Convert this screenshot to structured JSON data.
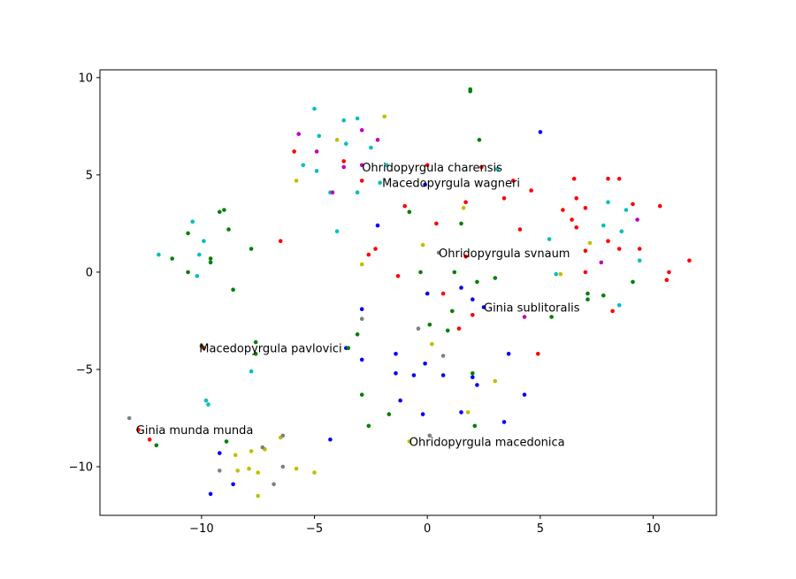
{
  "chart_data": {
    "type": "scatter",
    "title": "",
    "xlabel": "",
    "ylabel": "",
    "xlim": [
      -14.5,
      12.8
    ],
    "ylim": [
      -12.5,
      10.4
    ],
    "xticks": [
      -10,
      -5,
      0,
      5,
      10
    ],
    "yticks": [
      -10,
      -5,
      0,
      5,
      10
    ],
    "grid": false,
    "legend": "none",
    "series": [
      {
        "color": "#0000ff",
        "points": [
          [
            5.0,
            7.2
          ],
          [
            -0.1,
            4.5
          ],
          [
            -2.2,
            2.4
          ],
          [
            1.5,
            -0.8
          ],
          [
            2.0,
            -1.4
          ],
          [
            0.0,
            -1.1
          ],
          [
            2.5,
            -1.8
          ],
          [
            -2.9,
            -1.9
          ],
          [
            -3.6,
            -3.9
          ],
          [
            -2.9,
            -4.5
          ],
          [
            -1.4,
            -4.2
          ],
          [
            -0.1,
            -4.7
          ],
          [
            -1.4,
            -5.2
          ],
          [
            -0.6,
            -5.3
          ],
          [
            0.7,
            -5.3
          ],
          [
            2.0,
            -5.4
          ],
          [
            2.2,
            -5.8
          ],
          [
            3.6,
            -4.2
          ],
          [
            -1.2,
            -6.6
          ],
          [
            -0.2,
            -7.3
          ],
          [
            1.5,
            -7.2
          ],
          [
            3.4,
            -7.7
          ],
          [
            4.3,
            -6.3
          ],
          [
            -4.3,
            -8.6
          ],
          [
            -9.2,
            -9.3
          ],
          [
            -9.6,
            -11.4
          ],
          [
            -8.6,
            -10.9
          ]
        ]
      },
      {
        "color": "#ff0000",
        "points": [
          [
            -5.9,
            6.2
          ],
          [
            -3.7,
            5.7
          ],
          [
            -2.9,
            4.7
          ],
          [
            0.0,
            5.5
          ],
          [
            2.4,
            5.4
          ],
          [
            3.8,
            4.7
          ],
          [
            4.6,
            4.2
          ],
          [
            1.7,
            3.6
          ],
          [
            -1.0,
            3.4
          ],
          [
            3.4,
            3.8
          ],
          [
            6.5,
            4.8
          ],
          [
            8.0,
            4.8
          ],
          [
            8.5,
            4.8
          ],
          [
            6.6,
            3.8
          ],
          [
            6.0,
            3.2
          ],
          [
            7.0,
            3.3
          ],
          [
            9.1,
            3.5
          ],
          [
            10.3,
            3.4
          ],
          [
            6.4,
            2.7
          ],
          [
            6.6,
            2.3
          ],
          [
            0.4,
            2.5
          ],
          [
            4.1,
            2.2
          ],
          [
            -2.3,
            1.2
          ],
          [
            -6.5,
            1.6
          ],
          [
            -2.6,
            0.9
          ],
          [
            1.7,
            0.8
          ],
          [
            7.0,
            1.1
          ],
          [
            8.0,
            1.6
          ],
          [
            8.5,
            1.2
          ],
          [
            9.4,
            1.2
          ],
          [
            -1.3,
            -0.2
          ],
          [
            7.0,
            0.0
          ],
          [
            10.7,
            0.0
          ],
          [
            11.6,
            0.6
          ],
          [
            10.6,
            -0.4
          ],
          [
            0.7,
            -1.1
          ],
          [
            2.0,
            -2.2
          ],
          [
            8.2,
            -2.0
          ],
          [
            1.4,
            -2.9
          ],
          [
            4.9,
            -4.2
          ],
          [
            -9.9,
            -3.9
          ],
          [
            -12.8,
            -8.1
          ],
          [
            -12.3,
            -8.6
          ]
        ]
      },
      {
        "color": "#008000",
        "points": [
          [
            1.9,
            9.4
          ],
          [
            1.9,
            9.3
          ],
          [
            2.3,
            6.8
          ],
          [
            -0.8,
            3.1
          ],
          [
            1.5,
            2.5
          ],
          [
            -9.2,
            3.1
          ],
          [
            -9.0,
            3.2
          ],
          [
            -8.8,
            2.2
          ],
          [
            -10.6,
            2.0
          ],
          [
            -11.3,
            0.7
          ],
          [
            -9.6,
            0.7
          ],
          [
            -9.6,
            0.5
          ],
          [
            -7.8,
            1.2
          ],
          [
            -10.6,
            0.0
          ],
          [
            -8.6,
            -0.9
          ],
          [
            -0.3,
            0.0
          ],
          [
            1.2,
            0.0
          ],
          [
            3.0,
            -0.3
          ],
          [
            2.2,
            -0.5
          ],
          [
            9.1,
            -0.5
          ],
          [
            7.1,
            -1.1
          ],
          [
            7.8,
            -1.2
          ],
          [
            7.1,
            -1.4
          ],
          [
            1.1,
            -2.0
          ],
          [
            0.1,
            -2.7
          ],
          [
            5.5,
            -2.3
          ],
          [
            -3.1,
            -3.2
          ],
          [
            0.9,
            -3.0
          ],
          [
            -10.0,
            -3.8
          ],
          [
            -7.6,
            -3.6
          ],
          [
            -3.5,
            -3.9
          ],
          [
            -7.6,
            -4.2
          ],
          [
            -2.9,
            -6.3
          ],
          [
            2.0,
            -5.2
          ],
          [
            -1.7,
            -7.3
          ],
          [
            2.1,
            -7.9
          ],
          [
            -2.6,
            -7.9
          ],
          [
            -8.9,
            -8.7
          ],
          [
            -12.0,
            -8.9
          ]
        ]
      },
      {
        "color": "#00bfbf",
        "points": [
          [
            -5.0,
            8.4
          ],
          [
            -3.7,
            7.8
          ],
          [
            -3.1,
            7.9
          ],
          [
            -4.8,
            7.0
          ],
          [
            -3.6,
            6.6
          ],
          [
            -2.5,
            6.4
          ],
          [
            -5.5,
            5.5
          ],
          [
            -4.9,
            5.2
          ],
          [
            -1.8,
            5.5
          ],
          [
            -4.3,
            4.1
          ],
          [
            -3.1,
            4.1
          ],
          [
            -2.1,
            4.6
          ],
          [
            -4.0,
            2.1
          ],
          [
            3.1,
            5.3
          ],
          [
            8.0,
            3.6
          ],
          [
            8.8,
            3.2
          ],
          [
            7.8,
            2.4
          ],
          [
            8.6,
            2.1
          ],
          [
            -10.4,
            2.6
          ],
          [
            -9.9,
            1.6
          ],
          [
            -11.9,
            0.9
          ],
          [
            -10.1,
            0.9
          ],
          [
            -10.2,
            -0.2
          ],
          [
            5.4,
            1.7
          ],
          [
            5.7,
            -0.1
          ],
          [
            9.4,
            0.6
          ],
          [
            8.5,
            -1.7
          ],
          [
            -7.8,
            -5.1
          ],
          [
            -9.8,
            -6.6
          ],
          [
            -9.7,
            -6.8
          ]
        ]
      },
      {
        "color": "#bf00bf",
        "points": [
          [
            -5.7,
            7.1
          ],
          [
            -2.9,
            7.3
          ],
          [
            -2.2,
            6.8
          ],
          [
            -4.9,
            6.2
          ],
          [
            -3.7,
            5.4
          ],
          [
            -2.9,
            5.5
          ],
          [
            -4.2,
            4.1
          ],
          [
            9.3,
            2.7
          ],
          [
            7.7,
            0.5
          ],
          [
            4.3,
            -2.3
          ]
        ]
      },
      {
        "color": "#bfbf00",
        "points": [
          [
            -1.9,
            8.0
          ],
          [
            -4.0,
            6.8
          ],
          [
            -5.8,
            4.7
          ],
          [
            1.6,
            3.3
          ],
          [
            -0.2,
            1.4
          ],
          [
            7.2,
            1.5
          ],
          [
            -2.9,
            0.4
          ],
          [
            5.9,
            -0.1
          ],
          [
            0.2,
            -3.7
          ],
          [
            3.0,
            -5.6
          ],
          [
            1.8,
            -7.2
          ],
          [
            -0.8,
            -8.7
          ],
          [
            -8.5,
            -9.4
          ],
          [
            -7.8,
            -9.2
          ],
          [
            -7.2,
            -9.1
          ],
          [
            -7.2,
            -9.1
          ],
          [
            -8.4,
            -10.2
          ],
          [
            -7.9,
            -10.1
          ],
          [
            -7.5,
            -10.3
          ],
          [
            -5.8,
            -10.1
          ],
          [
            -5.0,
            -10.3
          ],
          [
            -7.5,
            -11.5
          ],
          [
            -6.5,
            -8.5
          ]
        ]
      },
      {
        "color": "#808080",
        "points": [
          [
            0.5,
            1.0
          ],
          [
            -2.9,
            -2.4
          ],
          [
            -0.4,
            -2.9
          ],
          [
            0.7,
            -4.3
          ],
          [
            -13.2,
            -7.5
          ],
          [
            -6.4,
            -8.4
          ],
          [
            -9.2,
            -10.2
          ],
          [
            -6.4,
            -10.0
          ],
          [
            -7.3,
            -9.0
          ],
          [
            -6.8,
            -10.9
          ],
          [
            0.1,
            -8.4
          ]
        ]
      }
    ],
    "annotations": [
      {
        "text": "Ohridopyrgula charensis",
        "x": -2.9,
        "y": 5.4
      },
      {
        "text": "Macedopyrgula wagneri",
        "x": -2.0,
        "y": 4.6
      },
      {
        "text": "Ohridopyrgula svnaum",
        "x": 0.5,
        "y": 1.0
      },
      {
        "text": "Ginia sublitoralis",
        "x": 2.5,
        "y": -1.8
      },
      {
        "text": "Macedopyrgula pavlovici",
        "x": -10.1,
        "y": -3.9
      },
      {
        "text": "Ginia munda munda",
        "x": -12.9,
        "y": -8.1
      },
      {
        "text": "Ohridopyrgula macedonica",
        "x": -0.8,
        "y": -8.7
      }
    ]
  }
}
